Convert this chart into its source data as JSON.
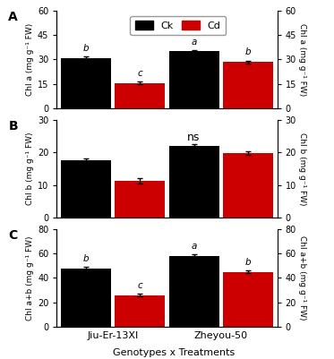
{
  "panel_A": {
    "label": "A",
    "ylabel_left": "Chl a (mg g⁻¹ FW)",
    "ylabel_right": "Chl a (mg g⁻¹ FW)",
    "ylim": [
      0,
      60
    ],
    "yticks": [
      0,
      15,
      30,
      45,
      60
    ],
    "bars": {
      "Jiu-Er-13XI": {
        "Ck": 31.0,
        "Cd": 15.5
      },
      "Zheyou-50": {
        "Ck": 35.0,
        "Cd": 28.5
      }
    },
    "errors": {
      "Jiu-Er-13XI": {
        "Ck": 0.8,
        "Cd": 0.8
      },
      "Zheyou-50": {
        "Ck": 0.8,
        "Cd": 0.8
      }
    },
    "letters": {
      "Jiu-Er-13XI": {
        "Ck": "b",
        "Cd": "c"
      },
      "Zheyou-50": {
        "Ck": "a",
        "Cd": "b"
      }
    },
    "ns_text": null,
    "has_legend": true
  },
  "panel_B": {
    "label": "B",
    "ylabel_left": "Chl b (mg g⁻¹ FW)",
    "ylabel_right": "Chl b (mg g⁻¹ FW)",
    "ylim": [
      0,
      30
    ],
    "yticks": [
      0,
      10,
      20,
      30
    ],
    "bars": {
      "Jiu-Er-13XI": {
        "Ck": 17.5,
        "Cd": 11.2
      },
      "Zheyou-50": {
        "Ck": 22.0,
        "Cd": 19.8
      }
    },
    "errors": {
      "Jiu-Er-13XI": {
        "Ck": 0.6,
        "Cd": 0.8
      },
      "Zheyou-50": {
        "Ck": 0.6,
        "Cd": 0.6
      }
    },
    "letters": {
      "Jiu-Er-13XI": {
        "Ck": null,
        "Cd": null
      },
      "Zheyou-50": {
        "Ck": null,
        "Cd": null
      }
    },
    "ns_text": "ns",
    "has_legend": false
  },
  "panel_C": {
    "label": "C",
    "ylabel_left": "Chl a+b (mg g⁻¹ FW)",
    "ylabel_right": "Chl a+b (mg g⁻¹ FW)",
    "ylim": [
      0,
      80
    ],
    "yticks": [
      0,
      20,
      40,
      60,
      80
    ],
    "bars": {
      "Jiu-Er-13XI": {
        "Ck": 48.0,
        "Cd": 26.0
      },
      "Zheyou-50": {
        "Ck": 58.0,
        "Cd": 45.0
      }
    },
    "errors": {
      "Jiu-Er-13XI": {
        "Ck": 1.2,
        "Cd": 1.0
      },
      "Zheyou-50": {
        "Ck": 1.5,
        "Cd": 1.2
      }
    },
    "letters": {
      "Jiu-Er-13XI": {
        "Ck": "b",
        "Cd": "c"
      },
      "Zheyou-50": {
        "Ck": "a",
        "Cd": "b"
      }
    },
    "ns_text": null,
    "has_legend": false
  },
  "ck_color": "#000000",
  "cd_color": "#cc0000",
  "genotypes": [
    "Jiu-Er-13XI",
    "Zheyou-50"
  ],
  "xlabel": "Genotypes x Treatments",
  "bar_width": 0.25,
  "background_color": "#ffffff"
}
